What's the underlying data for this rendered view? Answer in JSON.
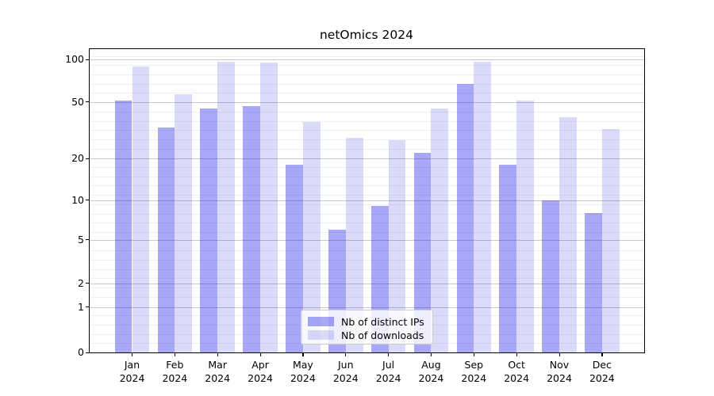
{
  "title": "netOmics 2024",
  "chart_data": {
    "type": "bar",
    "title": "netOmics 2024",
    "categories": [
      "Jan",
      "Feb",
      "Mar",
      "Apr",
      "May",
      "Jun",
      "Jul",
      "Aug",
      "Sep",
      "Oct",
      "Nov",
      "Dec"
    ],
    "category_year": "2024",
    "series": [
      {
        "name": "Nb of distinct IPs",
        "color": "#a9a9f6",
        "fill": "rgba(20,20,230,0.37)",
        "values": [
          51,
          33,
          45,
          47,
          18,
          6,
          9,
          22,
          67,
          18,
          10,
          8
        ]
      },
      {
        "name": "Nb of downloads",
        "color": "#dbdbf9",
        "fill": "rgba(30,30,215,0.16)",
        "values": [
          89,
          57,
          96,
          95,
          36,
          28,
          27,
          45,
          96,
          51,
          39,
          32
        ]
      }
    ],
    "xlabel": "",
    "ylabel": "",
    "yscale": "log-like",
    "yticks": [
      0,
      1,
      2,
      5,
      10,
      20,
      50,
      100
    ],
    "ylim": [
      0,
      110
    ],
    "grid": "on",
    "legend_position": "lower center"
  }
}
